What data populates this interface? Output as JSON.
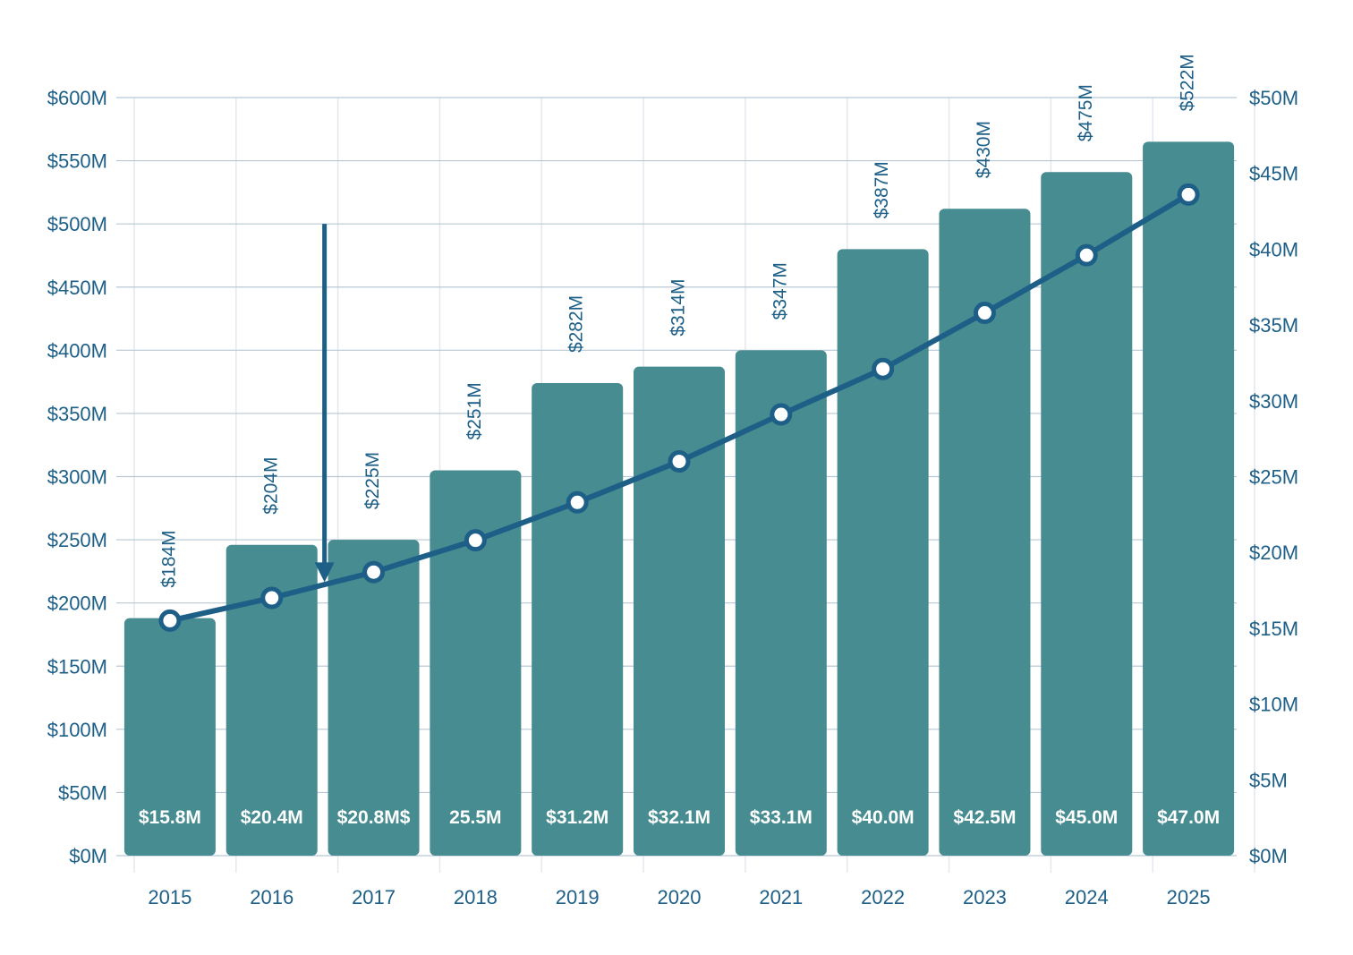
{
  "colors": {
    "bar": "#468c90",
    "line": "#1d5f87",
    "grid_h": "#b8c8d4",
    "grid_v": "#e3e8ee",
    "text": "#1d5f87",
    "inner_text": "#ffffff"
  },
  "chart_data": {
    "type": "bar",
    "title": "",
    "xlabel": "",
    "ylabel": "",
    "categories": [
      "2015",
      "2016",
      "2017",
      "2018",
      "2019",
      "2020",
      "2021",
      "2022",
      "2023",
      "2024",
      "2025"
    ],
    "grid": true,
    "legend": "none",
    "left_axis": {
      "min": 0,
      "max": 600,
      "unit": "millions USD",
      "ticks": [
        "$0M",
        "$50M",
        "$100M",
        "$150M",
        "$200M",
        "$250M",
        "$300M",
        "$350M",
        "$400M",
        "$450M",
        "$500M",
        "$550M",
        "$600M"
      ]
    },
    "right_axis": {
      "min": 0,
      "max": 50,
      "unit": "millions USD",
      "ticks": [
        "$0M",
        "$5M",
        "$10M",
        "$15M",
        "$20M",
        "$25M",
        "$30M",
        "$35M",
        "$40M",
        "$45M",
        "$50M"
      ]
    },
    "series": [
      {
        "type": "bar",
        "axis": "left",
        "values": [
          188,
          246,
          250,
          305,
          374,
          387,
          400,
          480,
          512,
          541,
          565
        ],
        "labels_top": [
          "$184M",
          "$204M",
          "$225M",
          "$251M",
          "$282M",
          "$314M",
          "$347M",
          "$387M",
          "$430M",
          "$475M",
          "$522M"
        ],
        "labels_bottom": [
          "$15.8M",
          "$20.4M",
          "$20.8M$",
          "25.5M",
          "$31.2M",
          "$32.1M",
          "$33.1M",
          "$40.0M",
          "$42.5M",
          "$45.0M",
          "$47.0M"
        ]
      },
      {
        "type": "line",
        "axis": "right",
        "values": [
          15.5,
          17.0,
          18.7,
          20.8,
          23.3,
          26.0,
          29.1,
          32.1,
          35.8,
          39.6,
          43.6
        ]
      }
    ],
    "annotation": {
      "type": "arrow",
      "between": [
        "2016",
        "2017"
      ],
      "from_left_value": 500,
      "to_left_value": 220
    }
  }
}
